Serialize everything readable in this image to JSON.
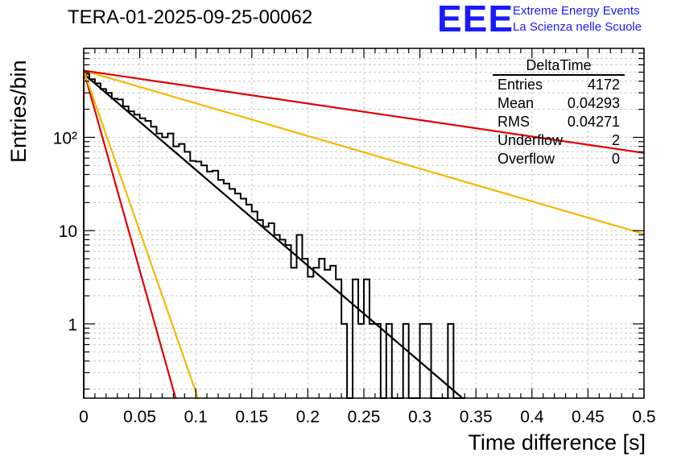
{
  "header": {
    "title": "TERA-01-2025-09-25-00062",
    "logo_text": "EEE",
    "logo_line1": "Extreme Energy Events",
    "logo_line2": "La Scienza nelle Scuole"
  },
  "stats_box": {
    "name": "DeltaTime",
    "rows": [
      {
        "label": "Entries",
        "value": "4172"
      },
      {
        "label": "Mean",
        "value": "0.04293"
      },
      {
        "label": "RMS",
        "value": "0.04271"
      },
      {
        "label": "Underflow",
        "value": "2"
      },
      {
        "label": "Overflow",
        "value": "0"
      }
    ]
  },
  "chart_data": {
    "type": "histogram",
    "title": "TERA-01-2025-09-25-00062",
    "xlabel": "Time difference [s]",
    "ylabel": "Entries/bin",
    "x_range": [
      0,
      0.5
    ],
    "y_range": [
      0.16,
      900
    ],
    "y_scale": "log",
    "x_ticks": [
      "0",
      "0.05",
      "0.1",
      "0.15",
      "0.2",
      "0.25",
      "0.3",
      "0.35",
      "0.4",
      "0.45",
      "0.5"
    ],
    "y_tick_labels": [
      {
        "value": 1,
        "label": "1"
      },
      {
        "value": 10,
        "label": "10"
      },
      {
        "value": 100,
        "label": "10²"
      }
    ],
    "grid": true,
    "bin_width": 0.005,
    "histogram": {
      "color": "#000000",
      "bin_low_edges": [
        0,
        0.005,
        0.01,
        0.015,
        0.02,
        0.025,
        0.03,
        0.035,
        0.04,
        0.045,
        0.05,
        0.055,
        0.06,
        0.065,
        0.07,
        0.075,
        0.08,
        0.085,
        0.09,
        0.095,
        0.1,
        0.105,
        0.11,
        0.115,
        0.12,
        0.125,
        0.13,
        0.135,
        0.14,
        0.145,
        0.15,
        0.155,
        0.16,
        0.165,
        0.17,
        0.175,
        0.18,
        0.185,
        0.19,
        0.195,
        0.2,
        0.205,
        0.21,
        0.215,
        0.22,
        0.225,
        0.23,
        0.235,
        0.24,
        0.245,
        0.25,
        0.255,
        0.26,
        0.265,
        0.27,
        0.275,
        0.28,
        0.285,
        0.29,
        0.295,
        0.3,
        0.305,
        0.31,
        0.315,
        0.32,
        0.325,
        0.33,
        0.335
      ],
      "counts": [
        480,
        420,
        380,
        330,
        300,
        260,
        255,
        215,
        190,
        175,
        160,
        150,
        130,
        110,
        100,
        110,
        80,
        85,
        70,
        56,
        55,
        50,
        43,
        44,
        35,
        32,
        28,
        25,
        22,
        19,
        16,
        13,
        11,
        12,
        9,
        8,
        7,
        4,
        9,
        5,
        3.2,
        4,
        5,
        3.8,
        4.2,
        3,
        1,
        0,
        3,
        1,
        3,
        1,
        1,
        0,
        1,
        0,
        0,
        1,
        0,
        0,
        1,
        1,
        0,
        0,
        0,
        1,
        0,
        0
      ]
    },
    "fits": [
      {
        "name": "exponential fit",
        "color": "#000000",
        "x": [
          0.0,
          0.338
        ],
        "y": [
          480,
          0.16
        ]
      },
      {
        "name": "red steep",
        "color": "#e00000",
        "x": [
          0.0,
          0.082
        ],
        "y": [
          520,
          0.16
        ]
      },
      {
        "name": "orange steep",
        "color": "#f5b800",
        "x": [
          0.0,
          0.102
        ],
        "y": [
          520,
          0.16
        ]
      },
      {
        "name": "orange shallow",
        "color": "#f5b800",
        "x": [
          0.0,
          0.5
        ],
        "y": [
          520,
          9.2
        ]
      },
      {
        "name": "red shallow",
        "color": "#e00000",
        "x": [
          0.0,
          0.5
        ],
        "y": [
          520,
          68
        ]
      }
    ]
  }
}
